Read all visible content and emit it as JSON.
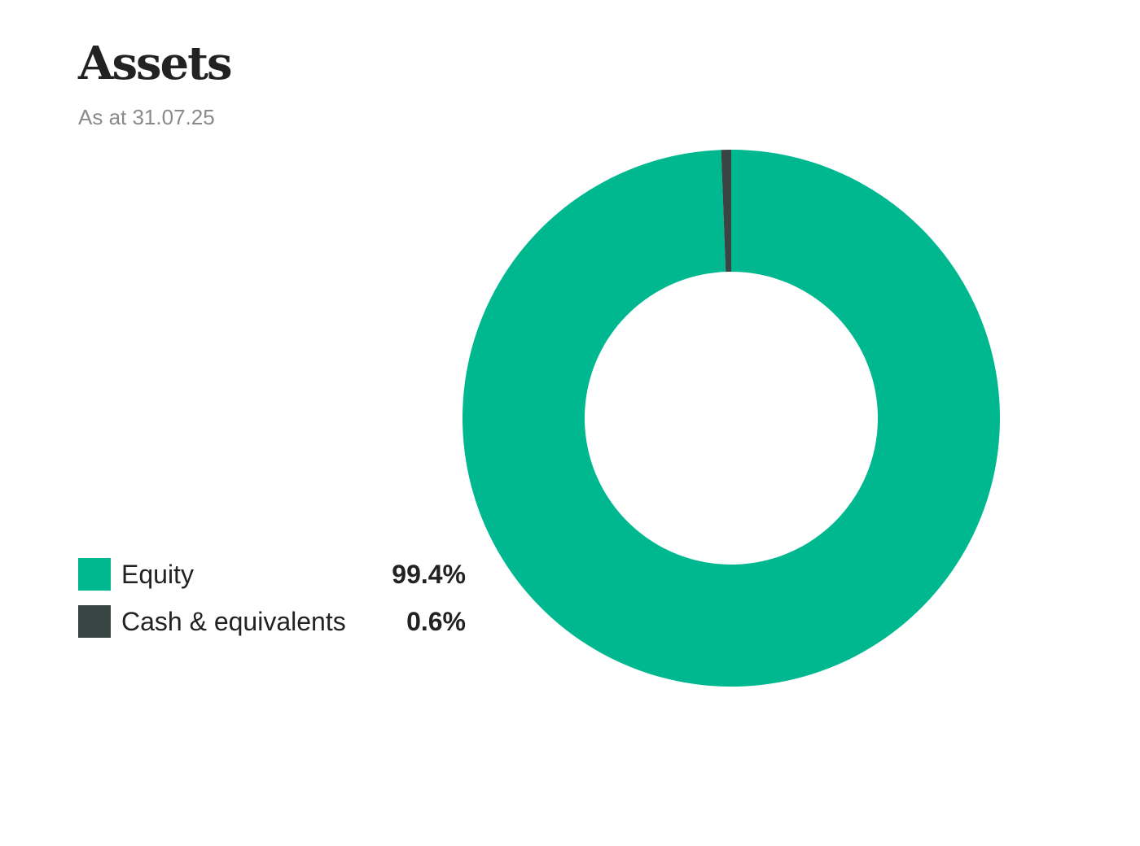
{
  "chart_data": {
    "type": "pie",
    "style": "donut",
    "title": "Assets",
    "subtitle": "As at 31.07.25",
    "legend_placement": "left",
    "slices": [
      {
        "label": "Equity",
        "value": 99.4,
        "display": "99.4%",
        "color": "#00b890"
      },
      {
        "label": "Cash & equivalents",
        "value": 0.6,
        "display": "0.6%",
        "color": "#394543"
      }
    ]
  }
}
